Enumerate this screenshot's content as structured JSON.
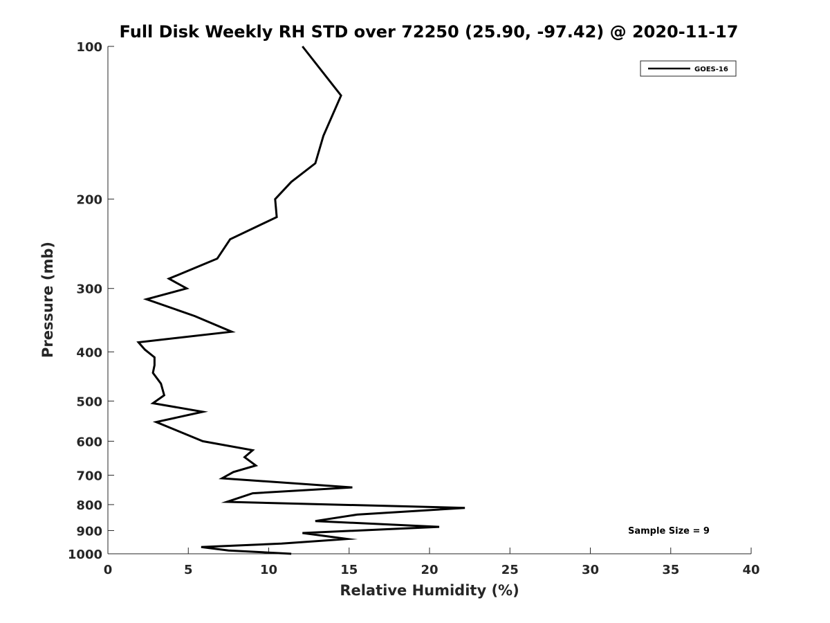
{
  "chart_data": {
    "type": "line",
    "title": "Full Disk Weekly RH STD over 72250 (25.90, -97.42) @ 2020-11-17",
    "xlabel": "Relative Humidity (%)",
    "ylabel": "Pressure (mb)",
    "xlim": [
      0,
      40
    ],
    "ylim": [
      100,
      1000
    ],
    "yscale": "log",
    "yreversed": true,
    "grid": false,
    "xticks": [
      0,
      5,
      10,
      15,
      20,
      25,
      30,
      35,
      40
    ],
    "yticks": [
      100,
      200,
      300,
      400,
      500,
      600,
      700,
      800,
      900,
      1000
    ],
    "legend": {
      "position": "top-right",
      "entries": [
        "GOES-16"
      ]
    },
    "annotation": "Sample Size = 9",
    "series": [
      {
        "name": "GOES-16",
        "color": "#000000",
        "x": [
          12.1,
          14.5,
          13.4,
          12.9,
          11.4,
          10.4,
          10.5,
          7.6,
          6.8,
          3.8,
          4.9,
          2.4,
          5.4,
          7.7,
          1.9,
          2.3,
          2.9,
          2.9,
          2.8,
          3.3,
          3.5,
          2.8,
          5.9,
          3.0,
          4.2,
          5.9,
          9.0,
          8.5,
          9.2,
          7.8,
          7.1,
          15.2,
          9.0,
          7.4,
          22.2,
          15.5,
          12.9,
          20.6,
          12.1,
          14.9,
          10.8,
          5.8,
          7.5,
          11.4
        ],
        "y": [
          100,
          125,
          150,
          170,
          185,
          200,
          217,
          240,
          262,
          287,
          300,
          315,
          340,
          365,
          383,
          396,
          410,
          425,
          440,
          462,
          487,
          505,
          525,
          550,
          570,
          600,
          625,
          645,
          670,
          690,
          710,
          740,
          760,
          790,
          812,
          837,
          862,
          885,
          910,
          935,
          955,
          970,
          985,
          1000
        ]
      }
    ]
  }
}
